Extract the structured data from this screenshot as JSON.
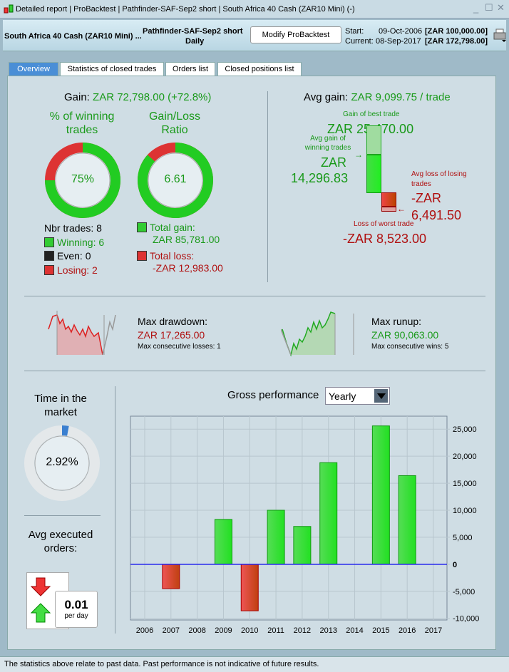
{
  "window": {
    "title": "Detailed report | ProBacktest | Pathfinder-SAF-Sep2 short | South Africa 40 Cash (ZAR10 Mini) (-)"
  },
  "header": {
    "instrument": "South Africa 40 Cash (ZAR10 Mini) ...",
    "strategy": "Pathfinder-SAF-Sep2 short",
    "timeframe": "Daily",
    "modify_button": "Modify ProBacktest",
    "start_label": "Start:",
    "start_date": "09-Oct-2006",
    "start_value": "[ZAR 100,000.00]",
    "current_label": "Current:",
    "current_date": "08-Sep-2017",
    "current_value": "[ZAR 172,798.00]"
  },
  "tabs": [
    "Overview",
    "Statistics of closed trades",
    "Orders list",
    "Closed positions list"
  ],
  "gain": {
    "label": "Gain:",
    "value": "ZAR 72,798.00 (+72.8%)"
  },
  "winning": {
    "title": "% of winning trades",
    "value": "75%",
    "pct": 75
  },
  "ratio": {
    "title": "Gain/Loss Ratio",
    "value": "6.61",
    "fraction": 0.868
  },
  "trades": {
    "nbr": "Nbr trades: 8",
    "winning": "Winning: 6",
    "even": "Even: 0",
    "losing": "Losing: 2",
    "total_gain_label": "Total gain:",
    "total_gain": "ZAR 85,781.00",
    "total_loss_label": "Total loss:",
    "total_loss": "-ZAR 12,983.00"
  },
  "avg": {
    "label": "Avg gain:",
    "value": "ZAR 9,099.75 / trade",
    "best_label": "Gain of best trade",
    "best": "ZAR 25,470.00",
    "avg_win_label": "Avg gain of winning trades",
    "avg_win_1": "ZAR",
    "avg_win_2": "14,296.83",
    "avg_loss_label": "Avg loss of losing trades",
    "avg_loss_1": "-ZAR",
    "avg_loss_2": "6,491.50",
    "worst_label": "Loss of worst trade",
    "worst": "-ZAR 8,523.00"
  },
  "drawdown": {
    "label": "Max drawdown:",
    "value": "ZAR 17,265.00",
    "sub": "Max consecutive losses: 1"
  },
  "runup": {
    "label": "Max runup:",
    "value": "ZAR 90,063.00",
    "sub": "Max consecutive wins: 5"
  },
  "time_market": {
    "title": "Time in the market",
    "value": "2.92%",
    "pct": 2.92
  },
  "orders": {
    "title": "Avg executed orders:",
    "value": "0.01",
    "unit": "per day"
  },
  "perf": {
    "title": "Gross performance",
    "period": "Yearly"
  },
  "chart_data": {
    "type": "bar",
    "title": "Gross performance",
    "categories": [
      "2006",
      "2007",
      "2008",
      "2009",
      "2010",
      "2011",
      "2012",
      "2013",
      "2014",
      "2015",
      "2016",
      "2017"
    ],
    "values": [
      0,
      -4500,
      0,
      8300,
      -8600,
      10000,
      7000,
      18800,
      0,
      25600,
      16400,
      0
    ],
    "yticks": [
      25000,
      20000,
      15000,
      10000,
      5000,
      0,
      -5000,
      -10000
    ],
    "ytick_labels": [
      "25,000",
      "20,000",
      "15,000",
      "10,000",
      "5,000",
      "0",
      "-5,000",
      "-10,000"
    ],
    "ylim": [
      -10300,
      27400
    ],
    "positive_color": "#22cc22",
    "negative_color": "#cc2222",
    "zero_line_color": "#2222ee"
  },
  "footer": "The statistics above relate to past data. Past performance is not indicative of future results."
}
